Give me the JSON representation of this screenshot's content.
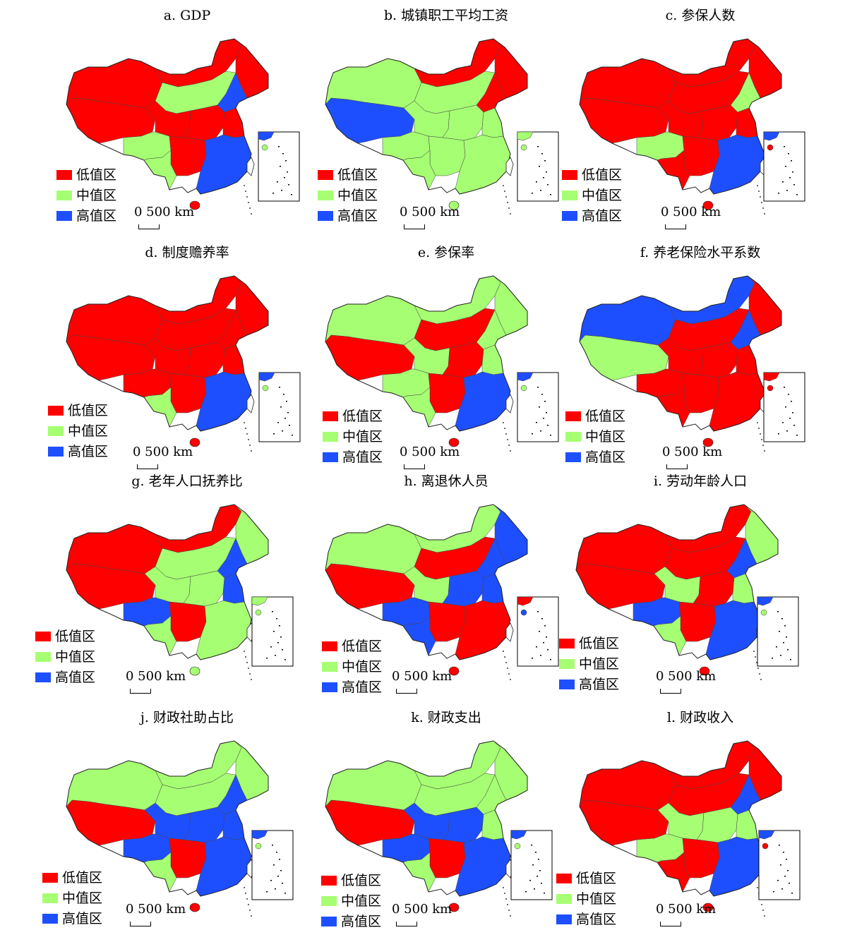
{
  "colors": {
    "low": "#ff0000",
    "mid": "#a6ff73",
    "high": "#1e4fff",
    "border": "#444444"
  },
  "legend_labels": {
    "low": "低值区",
    "mid": "中值区",
    "high": "高值区"
  },
  "scale_label": "0 500 km",
  "panels": [
    {
      "title": "a. GDP",
      "pattern": [
        "low",
        "low",
        "low",
        "low",
        "high",
        "mid",
        "low",
        "mid",
        "low",
        "low",
        "low",
        "mid",
        "high"
      ]
    },
    {
      "title": "b. 城镇职工平均工资",
      "pattern": [
        "mid",
        "high",
        "low",
        "low",
        "low",
        "mid",
        "mid",
        "mid",
        "mid",
        "mid",
        "mid",
        "mid",
        "mid"
      ]
    },
    {
      "title": "c. 参保人数",
      "pattern": [
        "low",
        "low",
        "low",
        "low",
        "mid",
        "low",
        "low",
        "mid",
        "low",
        "low",
        "low",
        "low",
        "high"
      ]
    },
    {
      "title": "d. 制度赡养率",
      "pattern": [
        "low",
        "low",
        "low",
        "low",
        "low",
        "low",
        "low",
        "low",
        "low",
        "low",
        "low",
        "mid",
        "high"
      ]
    },
    {
      "title": "e. 参保率",
      "pattern": [
        "mid",
        "low",
        "mid",
        "mid",
        "mid",
        "low",
        "mid",
        "mid",
        "low",
        "mid",
        "low",
        "mid",
        "high"
      ]
    },
    {
      "title": "f. 养老保险水平系数",
      "pattern": [
        "high",
        "mid",
        "high",
        "low",
        "high",
        "low",
        "low",
        "low",
        "low",
        "low",
        "low",
        "low",
        "low"
      ]
    },
    {
      "title": "g. 老年人口抚养比",
      "pattern": [
        "low",
        "low",
        "low",
        "mid",
        "high",
        "mid",
        "mid",
        "high",
        "mid",
        "high",
        "low",
        "mid",
        "mid"
      ]
    },
    {
      "title": "h. 离退休人员",
      "pattern": [
        "mid",
        "low",
        "mid",
        "high",
        "high",
        "low",
        "mid",
        "high",
        "high",
        "high",
        "low",
        "high",
        "low"
      ]
    },
    {
      "title": "i. 劳动年龄人口",
      "pattern": [
        "low",
        "low",
        "low",
        "mid",
        "high",
        "low",
        "mid",
        "high",
        "low",
        "mid",
        "low",
        "mid",
        "high"
      ]
    },
    {
      "title": "j. 财政社助占比",
      "pattern": [
        "mid",
        "low",
        "mid",
        "mid",
        "high",
        "mid",
        "high",
        "high",
        "high",
        "high",
        "low",
        "mid",
        "high"
      ]
    },
    {
      "title": "k. 财政支出",
      "pattern": [
        "mid",
        "low",
        "mid",
        "mid",
        "mid",
        "mid",
        "high",
        "high",
        "high",
        "mid",
        "low",
        "mid",
        "high"
      ]
    },
    {
      "title": "l. 财政收入",
      "pattern": [
        "low",
        "low",
        "low",
        "low",
        "high",
        "low",
        "mid",
        "mid",
        "mid",
        "mid",
        "low",
        "low",
        "high"
      ]
    }
  ]
}
